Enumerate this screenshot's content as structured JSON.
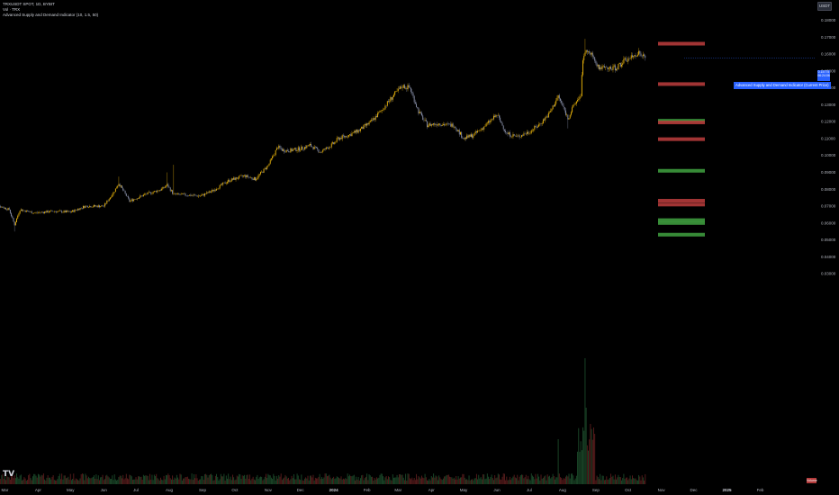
{
  "legend": {
    "symbol": "TRXUSDT SPOT, 1D, BYBIT",
    "volume": "Vol · TRX",
    "indicator": "Advanced Supply and Demand Indicator (10, 1.5, 50)"
  },
  "currency_button": "USDT",
  "current_price": {
    "value": "0.15775",
    "countdown": "06:24:06"
  },
  "indicator_label": "Advanced Supply and Demand Indicator (Current Price)",
  "volume_tag": "Volume",
  "logo_text": "TV",
  "colors": {
    "background": "#000000",
    "candle_up": "#f0b90b",
    "candle_down": "#8c93ad",
    "supply_zone": "#b23a3a",
    "demand_zone": "#3d9a3d",
    "accent": "#2962ff",
    "volume_up": "#1c4a2a",
    "volume_down": "#5a1d1d"
  },
  "chart_data": {
    "type": "candlestick",
    "price_scale": {
      "ticks": [
        "0.18000",
        "0.17000",
        "0.16000",
        "0.15000",
        "0.14000",
        "0.13000",
        "0.12000",
        "0.11000",
        "0.10000",
        "0.09000",
        "0.08000",
        "0.07000",
        "0.06000",
        "0.05000",
        "0.04000",
        "0.03000"
      ],
      "ylim": [
        0.03,
        0.18
      ]
    },
    "time_axis": {
      "labels": [
        {
          "text": "Mar",
          "bold": false
        },
        {
          "text": "Apr",
          "bold": false
        },
        {
          "text": "May",
          "bold": false
        },
        {
          "text": "Jun",
          "bold": false
        },
        {
          "text": "Jul",
          "bold": false
        },
        {
          "text": "Aug",
          "bold": false
        },
        {
          "text": "Sep",
          "bold": false
        },
        {
          "text": "Oct",
          "bold": false
        },
        {
          "text": "Nov",
          "bold": false
        },
        {
          "text": "Dec",
          "bold": false
        },
        {
          "text": "2024",
          "bold": true
        },
        {
          "text": "Feb",
          "bold": false
        },
        {
          "text": "Mar",
          "bold": false
        },
        {
          "text": "Apr",
          "bold": false
        },
        {
          "text": "May",
          "bold": false
        },
        {
          "text": "Jun",
          "bold": false
        },
        {
          "text": "Jul",
          "bold": false
        },
        {
          "text": "Aug",
          "bold": false
        },
        {
          "text": "Sep",
          "bold": false
        },
        {
          "text": "Oct",
          "bold": false
        },
        {
          "text": "Nov",
          "bold": false
        },
        {
          "text": "Dec",
          "bold": false
        },
        {
          "text": "2025",
          "bold": true
        },
        {
          "text": "Feb",
          "bold": false
        }
      ]
    },
    "price_path": [
      [
        "2023-02-16",
        0.0645
      ],
      [
        "2023-02-24",
        0.07
      ],
      [
        "2023-03-05",
        0.068
      ],
      [
        "2023-03-10",
        0.059
      ],
      [
        "2023-03-15",
        0.068
      ],
      [
        "2023-03-28",
        0.066
      ],
      [
        "2023-04-15",
        0.067
      ],
      [
        "2023-05-01",
        0.0665
      ],
      [
        "2023-05-15",
        0.07
      ],
      [
        "2023-06-01",
        0.07
      ],
      [
        "2023-06-10",
        0.078
      ],
      [
        "2023-06-15",
        0.0835
      ],
      [
        "2023-06-25",
        0.073
      ],
      [
        "2023-07-10",
        0.077
      ],
      [
        "2023-07-25",
        0.08
      ],
      [
        "2023-07-30",
        0.0825
      ],
      [
        "2023-08-05",
        0.077
      ],
      [
        "2023-08-20",
        0.0765
      ],
      [
        "2023-08-30",
        0.076
      ],
      [
        "2023-09-10",
        0.079
      ],
      [
        "2023-09-25",
        0.085
      ],
      [
        "2023-10-10",
        0.088
      ],
      [
        "2023-10-20",
        0.086
      ],
      [
        "2023-11-01",
        0.094
      ],
      [
        "2023-11-10",
        0.105
      ],
      [
        "2023-11-15",
        0.103
      ],
      [
        "2023-11-22",
        0.103
      ],
      [
        "2023-12-01",
        0.104
      ],
      [
        "2023-12-10",
        0.106
      ],
      [
        "2023-12-20",
        0.102
      ],
      [
        "2024-01-01",
        0.107
      ],
      [
        "2024-01-05",
        0.11
      ],
      [
        "2024-01-15",
        0.112
      ],
      [
        "2024-01-25",
        0.115
      ],
      [
        "2024-02-05",
        0.12
      ],
      [
        "2024-02-15",
        0.127
      ],
      [
        "2024-02-25",
        0.135
      ],
      [
        "2024-03-05",
        0.141
      ],
      [
        "2024-03-12",
        0.14
      ],
      [
        "2024-03-20",
        0.126
      ],
      [
        "2024-03-28",
        0.118
      ],
      [
        "2024-04-08",
        0.119
      ],
      [
        "2024-04-15",
        0.118
      ],
      [
        "2024-04-22",
        0.118
      ],
      [
        "2024-05-01",
        0.11
      ],
      [
        "2024-05-10",
        0.112
      ],
      [
        "2024-05-20",
        0.117
      ],
      [
        "2024-06-01",
        0.124
      ],
      [
        "2024-06-10",
        0.113
      ],
      [
        "2024-06-20",
        0.111
      ],
      [
        "2024-07-01",
        0.114
      ],
      [
        "2024-07-10",
        0.118
      ],
      [
        "2024-07-20",
        0.125
      ],
      [
        "2024-07-28",
        0.135
      ],
      [
        "2024-08-02",
        0.128
      ],
      [
        "2024-08-06",
        0.122
      ],
      [
        "2024-08-12",
        0.13
      ],
      [
        "2024-08-18",
        0.136
      ],
      [
        "2024-08-20",
        0.157
      ],
      [
        "2024-08-23",
        0.164
      ],
      [
        "2024-08-26",
        0.16
      ],
      [
        "2024-08-29",
        0.159
      ],
      [
        "2024-09-04",
        0.152
      ],
      [
        "2024-09-12",
        0.151
      ],
      [
        "2024-09-20",
        0.152
      ],
      [
        "2024-09-28",
        0.156
      ],
      [
        "2024-10-05",
        0.158
      ],
      [
        "2024-10-10",
        0.161
      ],
      [
        "2024-10-14",
        0.159
      ],
      [
        "2024-10-17",
        0.1575
      ]
    ],
    "zones": [
      {
        "kind": "supply",
        "top": 0.1672,
        "bottom": 0.1665
      },
      {
        "kind": "supply",
        "top": 0.1433,
        "bottom": 0.1426
      },
      {
        "kind": "demand",
        "top": 0.1216,
        "bottom": 0.1209
      },
      {
        "kind": "supply",
        "top": 0.1206,
        "bottom": 0.1199
      },
      {
        "kind": "supply",
        "top": 0.1107,
        "bottom": 0.11
      },
      {
        "kind": "demand",
        "top": 0.092,
        "bottom": 0.0913
      },
      {
        "kind": "supply",
        "top": 0.0743,
        "bottom": 0.0736
      },
      {
        "kind": "supply",
        "top": 0.072,
        "bottom": 0.0713
      },
      {
        "kind": "demand",
        "top": 0.0628,
        "bottom": 0.0621
      },
      {
        "kind": "demand",
        "top": 0.0611,
        "bottom": 0.0604
      },
      {
        "kind": "demand",
        "top": 0.0542,
        "bottom": 0.0535
      }
    ]
  }
}
